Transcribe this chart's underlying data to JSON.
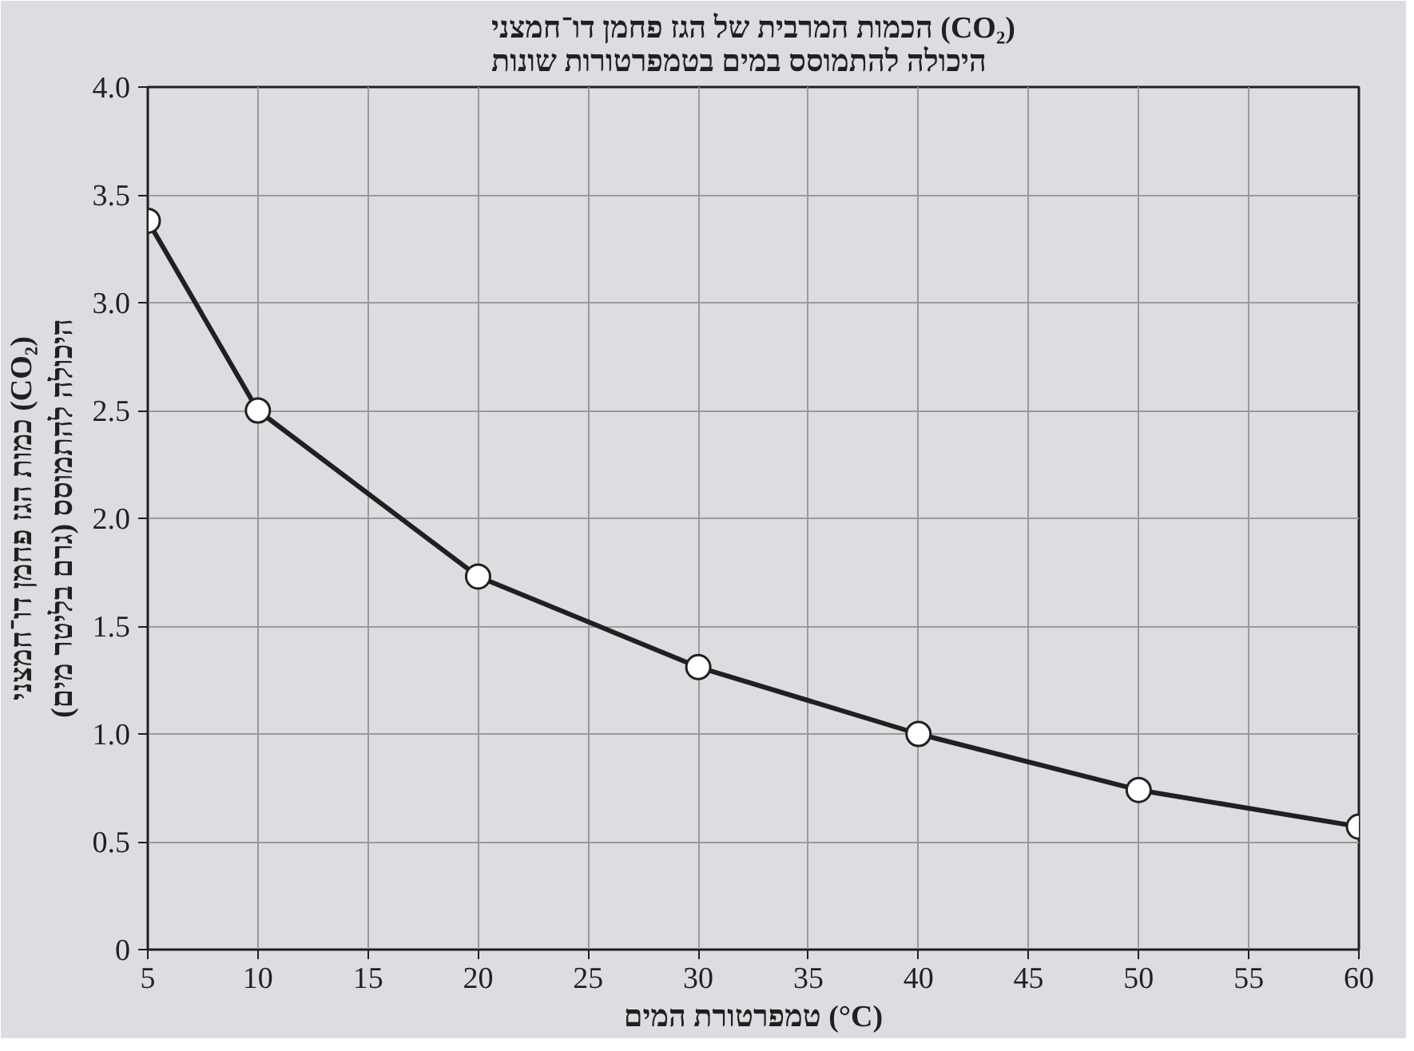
{
  "chart_data": {
    "type": "line",
    "title": "הכמות המרבית של הגז פחמן דו־חמצני (CO₂)\nהיכולה להתמוסס במים בטמפרטורות שונות",
    "xlabel": "טמפרטורת המים (°C)",
    "ylabel": "כמות הגז פחמן דו־חמצני (CO₂)\nהיכולה להתמוסס (גרם בליטר מים)",
    "x": [
      5,
      10,
      20,
      30,
      40,
      50,
      60
    ],
    "series": [
      {
        "color": "#231f20",
        "values": [
          3.38,
          2.5,
          1.73,
          1.31,
          1.0,
          0.74,
          0.57
        ]
      }
    ],
    "xlim": [
      5,
      60
    ],
    "xticks": [
      5,
      10,
      15,
      20,
      25,
      30,
      35,
      40,
      45,
      50,
      55,
      60
    ],
    "ylim": [
      0,
      4
    ],
    "yticks": [
      0,
      {
        "value": 0.5,
        "label": "0.5"
      },
      {
        "value": 1,
        "label": "1.0"
      },
      {
        "value": 1.5,
        "label": "1.5"
      },
      {
        "value": 2,
        "label": "2.0"
      },
      {
        "value": 2.5,
        "label": "2.5"
      },
      {
        "value": 3,
        "label": "3.0"
      },
      {
        "value": 3.5,
        "label": "3.5"
      },
      {
        "value": 4,
        "label": "4.0"
      }
    ],
    "grid": true,
    "marker": "circle",
    "line_style": "solid"
  }
}
